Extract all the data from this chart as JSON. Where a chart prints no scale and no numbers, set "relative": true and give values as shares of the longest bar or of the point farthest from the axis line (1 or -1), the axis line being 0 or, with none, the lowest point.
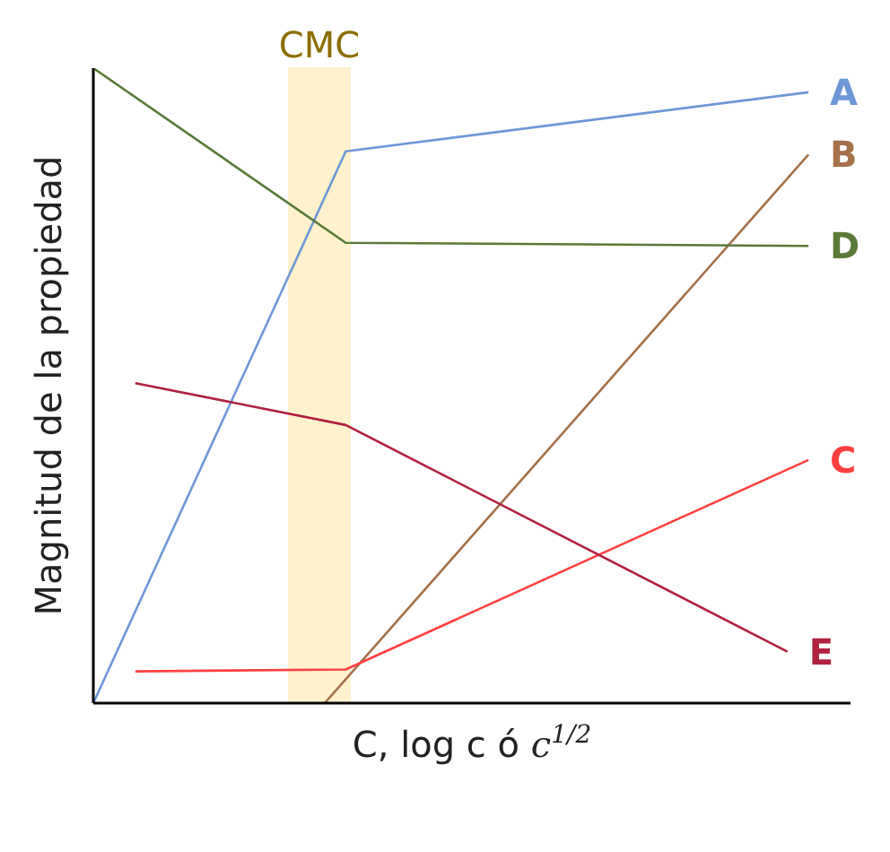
{
  "chart_data": {
    "type": "line",
    "relative": true,
    "xlabel": "C, log c ó c$^{1/2}$",
    "ylabel": "Magnitud de la propiedad",
    "grid": false,
    "legend": false,
    "marker": "none",
    "line_style": "solid",
    "categories": [
      null,
      null,
      null,
      null,
      null,
      null,
      null,
      null,
      null,
      null,
      null,
      null,
      null,
      null,
      null,
      null,
      null,
      null,
      null,
      null,
      null,
      null,
      null,
      null,
      null,
      null,
      null,
      null,
      null,
      null,
      null,
      null,
      null,
      null,
      null,
      null,
      null
    ],
    "annotations": [
      "CMC"
    ],
    "series": [
      {
        "name": "A",
        "color": "#6f97d8",
        "values": [
          0,
          null,
          null,
          null,
          null,
          null,
          null,
          null,
          null,
          null,
          null,
          null,
          0.869,
          null,
          null,
          null,
          null,
          null,
          null,
          null,
          null,
          null,
          null,
          null,
          null,
          null,
          null,
          null,
          null,
          null,
          null,
          null,
          null,
          null,
          0.962,
          null,
          null
        ]
      },
      {
        "name": "B",
        "color": "#a5704a",
        "values": [
          null,
          null,
          null,
          null,
          null,
          null,
          null,
          null,
          null,
          null,
          null,
          0,
          null,
          null,
          null,
          null,
          null,
          null,
          null,
          null,
          null,
          null,
          null,
          null,
          null,
          null,
          null,
          null,
          null,
          null,
          null,
          null,
          null,
          null,
          0.864,
          null,
          null
        ]
      },
      {
        "name": "D",
        "color": "#5a7a3a",
        "values": [
          1,
          null,
          null,
          null,
          null,
          null,
          null,
          null,
          null,
          null,
          null,
          null,
          0.725,
          null,
          null,
          null,
          null,
          null,
          null,
          null,
          null,
          null,
          null,
          null,
          null,
          null,
          null,
          null,
          null,
          null,
          null,
          null,
          null,
          null,
          0.72,
          null,
          null
        ]
      },
      {
        "name": "C",
        "color": "#ff4040",
        "values": [
          null,
          null,
          0.05,
          null,
          null,
          null,
          null,
          null,
          null,
          null,
          null,
          null,
          0.053,
          null,
          null,
          null,
          null,
          null,
          null,
          null,
          null,
          null,
          null,
          null,
          null,
          null,
          null,
          null,
          null,
          null,
          null,
          null,
          null,
          null,
          0.383,
          null,
          null
        ]
      },
      {
        "name": "E",
        "color": "#b0203f",
        "values": [
          null,
          null,
          0.504,
          null,
          null,
          null,
          null,
          null,
          null,
          null,
          null,
          null,
          0.438,
          null,
          null,
          null,
          null,
          null,
          null,
          null,
          null,
          null,
          null,
          null,
          null,
          null,
          null,
          null,
          null,
          null,
          null,
          null,
          null,
          0.081,
          null,
          null,
          null
        ]
      }
    ]
  }
}
